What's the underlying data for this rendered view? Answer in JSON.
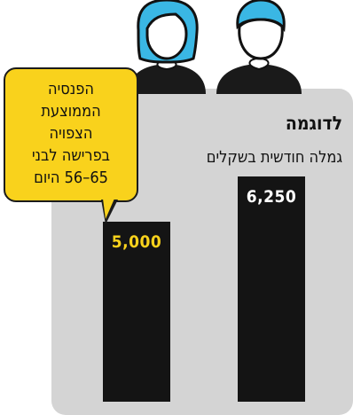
{
  "chart_data": {
    "type": "bar",
    "title": "לדוגמה",
    "subtitle": "גמלה חודשית בשקלים",
    "categories": [
      "",
      ""
    ],
    "values": [
      5000,
      6250
    ],
    "value_labels": [
      "5,000",
      "6,250"
    ],
    "ylim": [
      0,
      6250
    ],
    "grid": false,
    "colors": {
      "bar": "#141414",
      "panel": "#d4d4d4",
      "label_left": "#f9d21c",
      "label_right": "#ffffff",
      "callout": "#f9d21c",
      "hair": "#3ab7e4"
    },
    "callout": {
      "lines": [
        "הפנסיה",
        "הממוצעת",
        "הצפויה",
        "בפרישה לבני",
        "65–56 היום"
      ]
    },
    "icons": [
      "woman-icon",
      "man-icon"
    ]
  }
}
